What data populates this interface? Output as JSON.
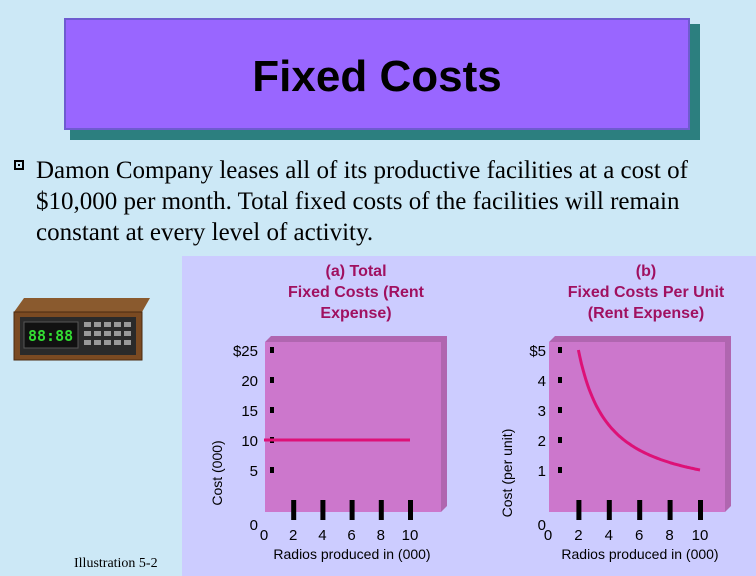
{
  "slide": {
    "title": "Fixed Costs",
    "bullet_text": "Damon Company leases all of its productive facilities at a cost of $10,000 per month.  Total fixed costs of the facilities will remain constant at every level of activity.",
    "illustration_label": "Illustration 5-2",
    "radio_display": "88:88"
  },
  "colors": {
    "title_bg": "#9966ff",
    "title_shadow": "#2c7f7f",
    "background": "#cce8f6",
    "chart_panel": "#ccccff",
    "plot_bg": "#cc77cc",
    "line": "#dd1177"
  },
  "chart_data": [
    {
      "type": "line",
      "title_lines": [
        "(a)                  Total",
        "Fixed Costs (Rent",
        "Expense)"
      ],
      "xlabel": "Radios produced in (000)",
      "ylabel": "Cost (000)",
      "x_ticks": [
        "0",
        "2",
        "4",
        "6",
        "8",
        "10"
      ],
      "y_ticks": [
        "0",
        "5",
        "10",
        "15",
        "20",
        "$25"
      ],
      "xlim": [
        0,
        10
      ],
      "ylim": [
        0,
        25
      ],
      "series": [
        {
          "x": [
            0,
            10
          ],
          "y": [
            10,
            10
          ]
        }
      ]
    },
    {
      "type": "line",
      "title_lines": [
        "(b)",
        "Fixed Costs Per Unit",
        "(Rent Expense)"
      ],
      "xlabel": "Radios produced in (000)",
      "ylabel": "Cost (per unit)",
      "x_ticks": [
        "0",
        "2",
        "4",
        "6",
        "8",
        "10"
      ],
      "y_ticks": [
        "0",
        "1",
        "2",
        "3",
        "4",
        "$5"
      ],
      "xlim": [
        0,
        10
      ],
      "ylim": [
        0,
        5
      ],
      "series": [
        {
          "x": [
            2,
            2.5,
            3,
            4,
            5,
            6,
            7,
            8,
            9,
            10
          ],
          "y": [
            5,
            4,
            3.33,
            2.5,
            2,
            1.67,
            1.43,
            1.25,
            1.11,
            1
          ]
        }
      ]
    }
  ]
}
